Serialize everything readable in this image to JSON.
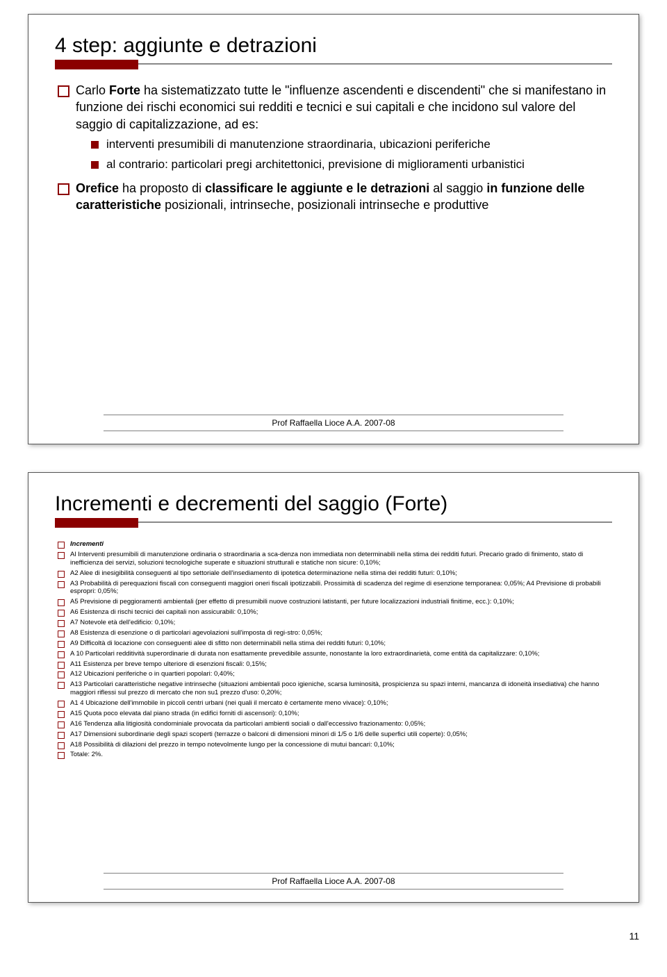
{
  "page_number": "11",
  "footer_text": "Prof Raffaella Lioce A.A. 2007-08",
  "colors": {
    "accent_red": "#8b0000",
    "rule_gray": "#808080",
    "border_gray": "#555555"
  },
  "slide1": {
    "title": "4 step: aggiunte e detrazioni",
    "b1_pre": "Carlo ",
    "b1_bold": "Forte",
    "b1_post": " ha sistematizzato tutte le \"influenze ascendenti e discendenti\" che si manifestano in funzione dei rischi economici sui redditi e tecnici e sui capitali e che incidono sul valore del saggio di capitalizzazione, ad es:",
    "sub1": "interventi presumibili di manutenzione straordinaria, ubicazioni periferiche",
    "sub2": "al contrario: particolari pregi architettonici, previsione di miglioramenti urbanistici",
    "b2_bold1": "Orefice",
    "b2_mid1": " ha proposto di ",
    "b2_bold2": "classificare le aggiunte e le detrazioni",
    "b2_mid2": " al saggio ",
    "b2_bold3": "in funzione delle caratteristiche",
    "b2_post": " posizionali, intrinseche, posizionali intrinseche e produttive"
  },
  "slide2": {
    "title": "Incrementi e decrementi del saggio (Forte)",
    "hdr": "Incrementi",
    "items": [
      "Al Interventi presumibili di manutenzione ordinaria o straordinaria a sca-denza non immediata non determinabili nella stima dei redditi futuri. Precario grado di finimento, stato di inefficienza dei servizi, soluzioni tecnologiche superate e situazioni strutturali e statiche non sicure: 0,10%;",
      "A2 Alee di inesigibilità conseguenti al tipo settoriale dell'insediamento di ipotetica determinazione nella stima dei redditi futuri: 0,10%;",
      "A3 Probabilità di perequazioni fiscali con conseguenti maggiori oneri fiscali ipotizzabili. Prossimità di scadenza del regime di esenzione temporanea: 0,05%; A4 Previsione di probabili espropri: 0,05%;",
      "A5 Previsione di peggioramenti ambientali (per effetto di presumibili nuove costruzioni latistanti, per future localizzazioni industriali finitime, ecc.): 0,10%;",
      "A6 Esistenza di rischi tecnici dei capitali non assicurabili: 0,10%;",
      "A7 Notevole età dell'edificio: 0,10%;",
      "A8 Esistenza di esenzione o di particolari agevolazioni sull'imposta di regi-stro: 0,05%;",
      "A9 Difficoltà di locazione con conseguenti alee di sfitto non determinabili nella stima dei redditi futuri: 0,10%;",
      "A 10 Particolari redditività superordinarie di durata non esattamente prevedibile assunte, nonostante la loro extraordinarietà, come entità da capitalizzare: 0,10%;",
      "A11 Esistenza per breve tempo ulteriore di esenzioni fiscali: 0,15%;",
      "A12 Ubicazioni periferiche o in quartieri popolari: 0,40%;",
      "A13 Particolari caratteristiche negative intrinseche (situazioni ambientali poco igieniche, scarsa luminosità, prospicienza su spazi interni, mancanza di idoneità insediativa) che hanno maggiori riflessi sul prezzo di mercato che non su1 prezzo d'uso: 0,20%;",
      "A1 4 Ubicazione dell'immobile in piccoli centri urbani (nei quali il mercato è certamente meno vivace): 0,10%;",
      "A15 Quota poco elevata dal piano strada (in edifici forniti di ascensori): 0,10%;",
      "A16 Tendenza alla litigiosità condominiale provocata da particolari ambienti sociali o dall'eccessivo frazionamento: 0,05%;",
      "A17 Dimensioni subordinarie degli spazi scoperti (terrazze o balconi di dimensioni minori di 1/5 o 1/6 delle superfici utili coperte): 0,05%;",
      "A18 Possibilità di dilazioni del prezzo in tempo notevolmente lungo per la concessione di mutui bancari: 0,10%;",
      "Totale:           2%."
    ]
  }
}
